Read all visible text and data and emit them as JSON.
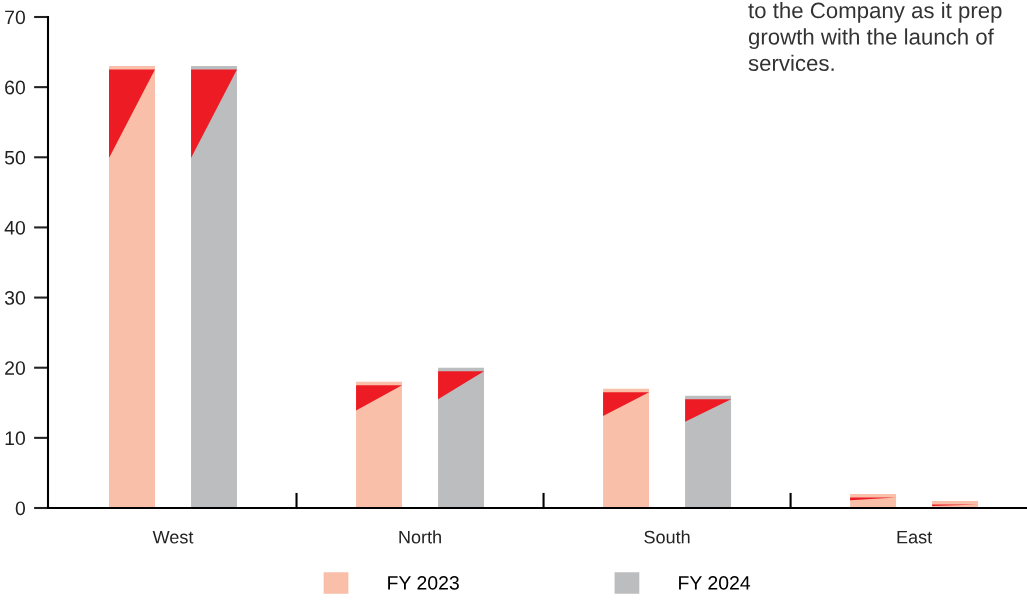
{
  "chart_data": {
    "type": "bar",
    "categories": [
      "West",
      "North",
      "South",
      "East"
    ],
    "series": [
      {
        "name": "FY 2023",
        "color": "#f9bfa8",
        "values": [
          63,
          18,
          17,
          2
        ]
      },
      {
        "name": "FY 2024",
        "color": "#bcbdbf",
        "colors": [
          "#bcbdbf",
          "#bcbdbf",
          "#bcbdbf",
          "#f9bfa8"
        ],
        "values": [
          63,
          20,
          16,
          1
        ]
      }
    ],
    "ylim": [
      0,
      70
    ],
    "yticks": [
      0,
      10,
      20,
      30,
      40,
      50,
      60,
      70
    ],
    "grid": false,
    "legend": "bottom",
    "annotations": [
      "to the Company as it prep\ngrowth with the launch of\nservices."
    ]
  }
}
